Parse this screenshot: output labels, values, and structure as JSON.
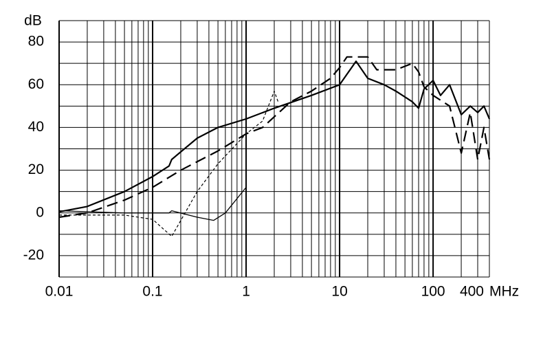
{
  "chart_data": {
    "type": "line",
    "x_label": "MHz",
    "y_label": "dB",
    "log_x": true,
    "xlim": [
      0.01,
      400
    ],
    "ylim": [
      -30,
      90
    ],
    "xticks": [
      0.01,
      0.1,
      1,
      10,
      100,
      400
    ],
    "yticks": [
      -20,
      0,
      20,
      40,
      60,
      80
    ],
    "xgrid": [
      0.01,
      0.02,
      0.03,
      0.04,
      0.05,
      0.06,
      0.07,
      0.08,
      0.09,
      0.1,
      0.2,
      0.3,
      0.4,
      0.5,
      0.6,
      0.7,
      0.8,
      0.9,
      1,
      2,
      3,
      4,
      5,
      6,
      7,
      8,
      9,
      10,
      20,
      30,
      40,
      50,
      60,
      70,
      80,
      90,
      100,
      200,
      300,
      400
    ],
    "xgrid_major": [
      0.01,
      0.1,
      1,
      10,
      100
    ],
    "ygrid": [
      -30,
      -20,
      -10,
      0,
      10,
      20,
      30,
      40,
      50,
      60,
      70,
      80,
      90
    ],
    "grid": true,
    "series": [
      {
        "color": "#000000",
        "dash": "solid",
        "width": 2.2,
        "x": [
          0.01,
          0.02,
          0.05,
          0.1,
          0.15,
          0.16,
          0.3,
          0.5,
          1,
          2,
          5,
          10,
          15,
          20,
          30,
          40,
          60,
          70,
          80,
          100,
          120,
          150,
          200,
          250,
          300,
          350,
          400
        ],
        "values": [
          0.5,
          3,
          10,
          17,
          22,
          25,
          35,
          40,
          44,
          49,
          55,
          60,
          71,
          63,
          60,
          57,
          52,
          49,
          58,
          62,
          55,
          60,
          46,
          50,
          47,
          50,
          44
        ]
      },
      {
        "color": "#000000",
        "dash": "long-dash",
        "width": 2.2,
        "x": [
          0.01,
          0.02,
          0.05,
          0.1,
          0.2,
          0.5,
          1,
          1.5,
          3,
          5,
          8,
          10,
          12,
          20,
          25,
          40,
          60,
          70,
          80,
          100,
          150,
          200,
          250,
          300,
          350,
          400
        ],
        "values": [
          -2,
          0,
          6,
          12,
          20,
          29,
          37,
          40,
          52,
          57,
          63,
          68,
          73,
          73,
          67,
          67,
          70,
          66,
          59,
          55,
          50,
          28,
          47,
          25,
          40,
          25
        ]
      },
      {
        "color": "#000000",
        "dash": "short-dash",
        "width": 1.2,
        "x": [
          0.01,
          0.05,
          0.1,
          0.16,
          0.3,
          0.5,
          1,
          1.5,
          2,
          2.2
        ],
        "values": [
          -1,
          -1,
          -3,
          -11,
          10,
          23,
          37,
          43,
          57,
          52
        ]
      },
      {
        "color": "#000000",
        "dash": "solid",
        "width": 1.3,
        "x": [
          0.01,
          0.05,
          0.15,
          0.16,
          0.3,
          0.45,
          0.6,
          1
        ],
        "values": [
          1,
          0,
          0,
          1,
          -2,
          -3.5,
          0,
          12
        ]
      }
    ]
  }
}
